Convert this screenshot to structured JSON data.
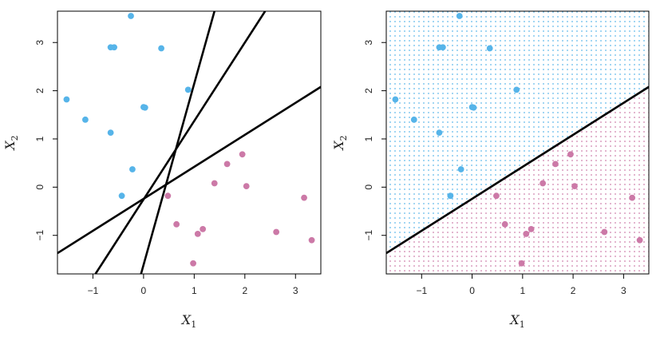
{
  "chart_data": [
    {
      "type": "scatter",
      "panel": "left",
      "title": "",
      "xlabel": "X",
      "xlabel_sub": "1",
      "ylabel": "X",
      "ylabel_sub": "2",
      "xlim": [
        -1.7,
        3.5
      ],
      "ylim": [
        -1.8,
        3.65
      ],
      "xticks": [
        "-1",
        "0",
        "1",
        "2",
        "3"
      ],
      "yticks": [
        "-1",
        "0",
        "1",
        "2",
        "3"
      ],
      "xtick_values": [
        -1,
        0,
        1,
        2,
        3
      ],
      "ytick_values": [
        -1,
        0,
        1,
        2,
        3
      ],
      "grid": false,
      "series": [
        {
          "color": "#56B4E9",
          "points": [
            [
              -0.25,
              3.55
            ],
            [
              -0.65,
              2.9
            ],
            [
              -0.58,
              2.9
            ],
            [
              0.35,
              2.88
            ],
            [
              0.88,
              2.02
            ],
            [
              -1.52,
              1.82
            ],
            [
              0.0,
              1.66
            ],
            [
              0.03,
              1.65
            ],
            [
              -1.15,
              1.4
            ],
            [
              -0.65,
              1.13
            ],
            [
              -0.22,
              0.37
            ],
            [
              -0.43,
              -0.18
            ]
          ]
        },
        {
          "color": "#CC79A7",
          "points": [
            [
              1.95,
              0.68
            ],
            [
              1.65,
              0.48
            ],
            [
              1.4,
              0.08
            ],
            [
              2.03,
              0.02
            ],
            [
              0.48,
              -0.18
            ],
            [
              3.17,
              -0.22
            ],
            [
              0.65,
              -0.77
            ],
            [
              1.17,
              -0.87
            ],
            [
              1.07,
              -0.97
            ],
            [
              2.62,
              -0.93
            ],
            [
              3.32,
              -1.1
            ],
            [
              0.98,
              -1.58
            ]
          ]
        }
      ],
      "lines": [
        {
          "x": [
            -1.7,
            3.5
          ],
          "y": [
            -1.37,
            2.08
          ]
        },
        {
          "x": [
            -0.95,
            2.4
          ],
          "y": [
            -1.8,
            3.65
          ]
        },
        {
          "x": [
            -0.05,
            1.4
          ],
          "y": [
            -1.8,
            3.65
          ]
        }
      ]
    },
    {
      "type": "scatter",
      "panel": "right",
      "title": "",
      "xlabel": "X",
      "xlabel_sub": "1",
      "ylabel": "X",
      "ylabel_sub": "2",
      "xlim": [
        -1.7,
        3.5
      ],
      "ylim": [
        -1.8,
        3.65
      ],
      "xticks": [
        "-1",
        "0",
        "1",
        "2",
        "3"
      ],
      "yticks": [
        "-1",
        "0",
        "1",
        "2",
        "3"
      ],
      "xtick_values": [
        -1,
        0,
        1,
        2,
        3
      ],
      "ytick_values": [
        -1,
        0,
        1,
        2,
        3
      ],
      "grid": false,
      "background": "dotted regions shaded by class: blue above the line, purple below",
      "series": [
        {
          "color": "#56B4E9",
          "points": [
            [
              -0.25,
              3.55
            ],
            [
              -0.65,
              2.9
            ],
            [
              -0.58,
              2.9
            ],
            [
              0.35,
              2.88
            ],
            [
              0.88,
              2.02
            ],
            [
              -1.52,
              1.82
            ],
            [
              0.0,
              1.66
            ],
            [
              0.03,
              1.65
            ],
            [
              -1.15,
              1.4
            ],
            [
              -0.65,
              1.13
            ],
            [
              -0.22,
              0.37
            ],
            [
              -0.43,
              -0.18
            ]
          ]
        },
        {
          "color": "#CC79A7",
          "points": [
            [
              1.95,
              0.68
            ],
            [
              1.65,
              0.48
            ],
            [
              1.4,
              0.08
            ],
            [
              2.03,
              0.02
            ],
            [
              0.48,
              -0.18
            ],
            [
              3.17,
              -0.22
            ],
            [
              0.65,
              -0.77
            ],
            [
              1.17,
              -0.87
            ],
            [
              1.07,
              -0.97
            ],
            [
              2.62,
              -0.93
            ],
            [
              3.32,
              -1.1
            ],
            [
              0.98,
              -1.58
            ]
          ]
        }
      ],
      "lines": [
        {
          "x": [
            -1.7,
            3.5
          ],
          "y": [
            -1.37,
            2.08
          ]
        }
      ]
    }
  ]
}
